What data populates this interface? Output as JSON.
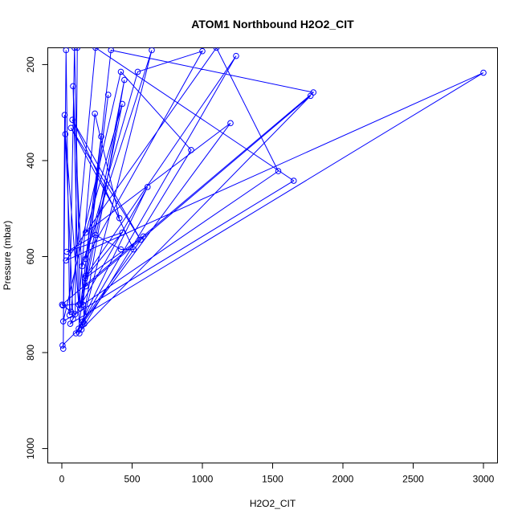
{
  "chart_data": {
    "type": "line",
    "title": "ATOM1 Northbound H2O2_CIT",
    "xlabel": "H2O2_CIT",
    "ylabel": "Pressure (mbar)",
    "xlim": [
      -100,
      3100
    ],
    "ylim": [
      1030,
      165
    ],
    "y_reversed": true,
    "xticks": [
      0,
      500,
      1000,
      1500,
      2000,
      2500,
      3000
    ],
    "yticks": [
      200,
      400,
      600,
      800,
      1000
    ],
    "grid": false,
    "series": [
      {
        "values": [
          [
            5,
            785
          ],
          [
            160,
            740
          ],
          [
            80,
            245
          ],
          [
            125,
            760
          ],
          [
            920,
            378
          ],
          [
            420,
            215
          ],
          [
            10,
            735
          ],
          [
            1650,
            442
          ],
          [
            240,
            165
          ],
          [
            65,
            715
          ],
          [
            2,
            700
          ],
          [
            1790,
            258
          ],
          [
            350,
            170
          ],
          [
            150,
            700
          ],
          [
            1540,
            422
          ],
          [
            1100,
            165
          ],
          [
            30,
            608
          ],
          [
            3000,
            217
          ],
          [
            60,
            740
          ],
          [
            610,
            455
          ],
          [
            100,
            760
          ],
          [
            1240,
            182
          ],
          [
            170,
            640
          ],
          [
            330,
            263
          ],
          [
            120,
            750
          ],
          [
            1200,
            322
          ],
          [
            170,
            550
          ],
          [
            430,
            282
          ],
          [
            170,
            662
          ],
          [
            1770,
            265
          ],
          [
            140,
            752
          ],
          [
            445,
            232
          ],
          [
            130,
            708
          ],
          [
            280,
            350
          ],
          [
            170,
            605
          ],
          [
            1000,
            172
          ],
          [
            540,
            215
          ],
          [
            145,
            620
          ],
          [
            640,
            170
          ],
          [
            150,
            735
          ],
          [
            580,
            558
          ],
          [
            165,
            645
          ],
          [
            430,
            550
          ],
          [
            35,
            590
          ],
          [
            240,
            555
          ],
          [
            420,
            585
          ],
          [
            510,
            585
          ],
          [
            75,
            315
          ],
          [
            560,
            565
          ],
          [
            65,
            332
          ],
          [
            410,
            520
          ],
          [
            235,
            302
          ],
          [
            120,
            700
          ],
          [
            25,
            345
          ],
          [
            80,
            730
          ],
          [
            20,
            305
          ],
          [
            10,
            792
          ],
          [
            30,
            170
          ],
          [
            55,
            722
          ],
          [
            90,
            165
          ],
          [
            130,
            698
          ],
          [
            8,
            702
          ],
          [
            95,
            720
          ],
          [
            110,
            165
          ]
        ]
      }
    ]
  }
}
